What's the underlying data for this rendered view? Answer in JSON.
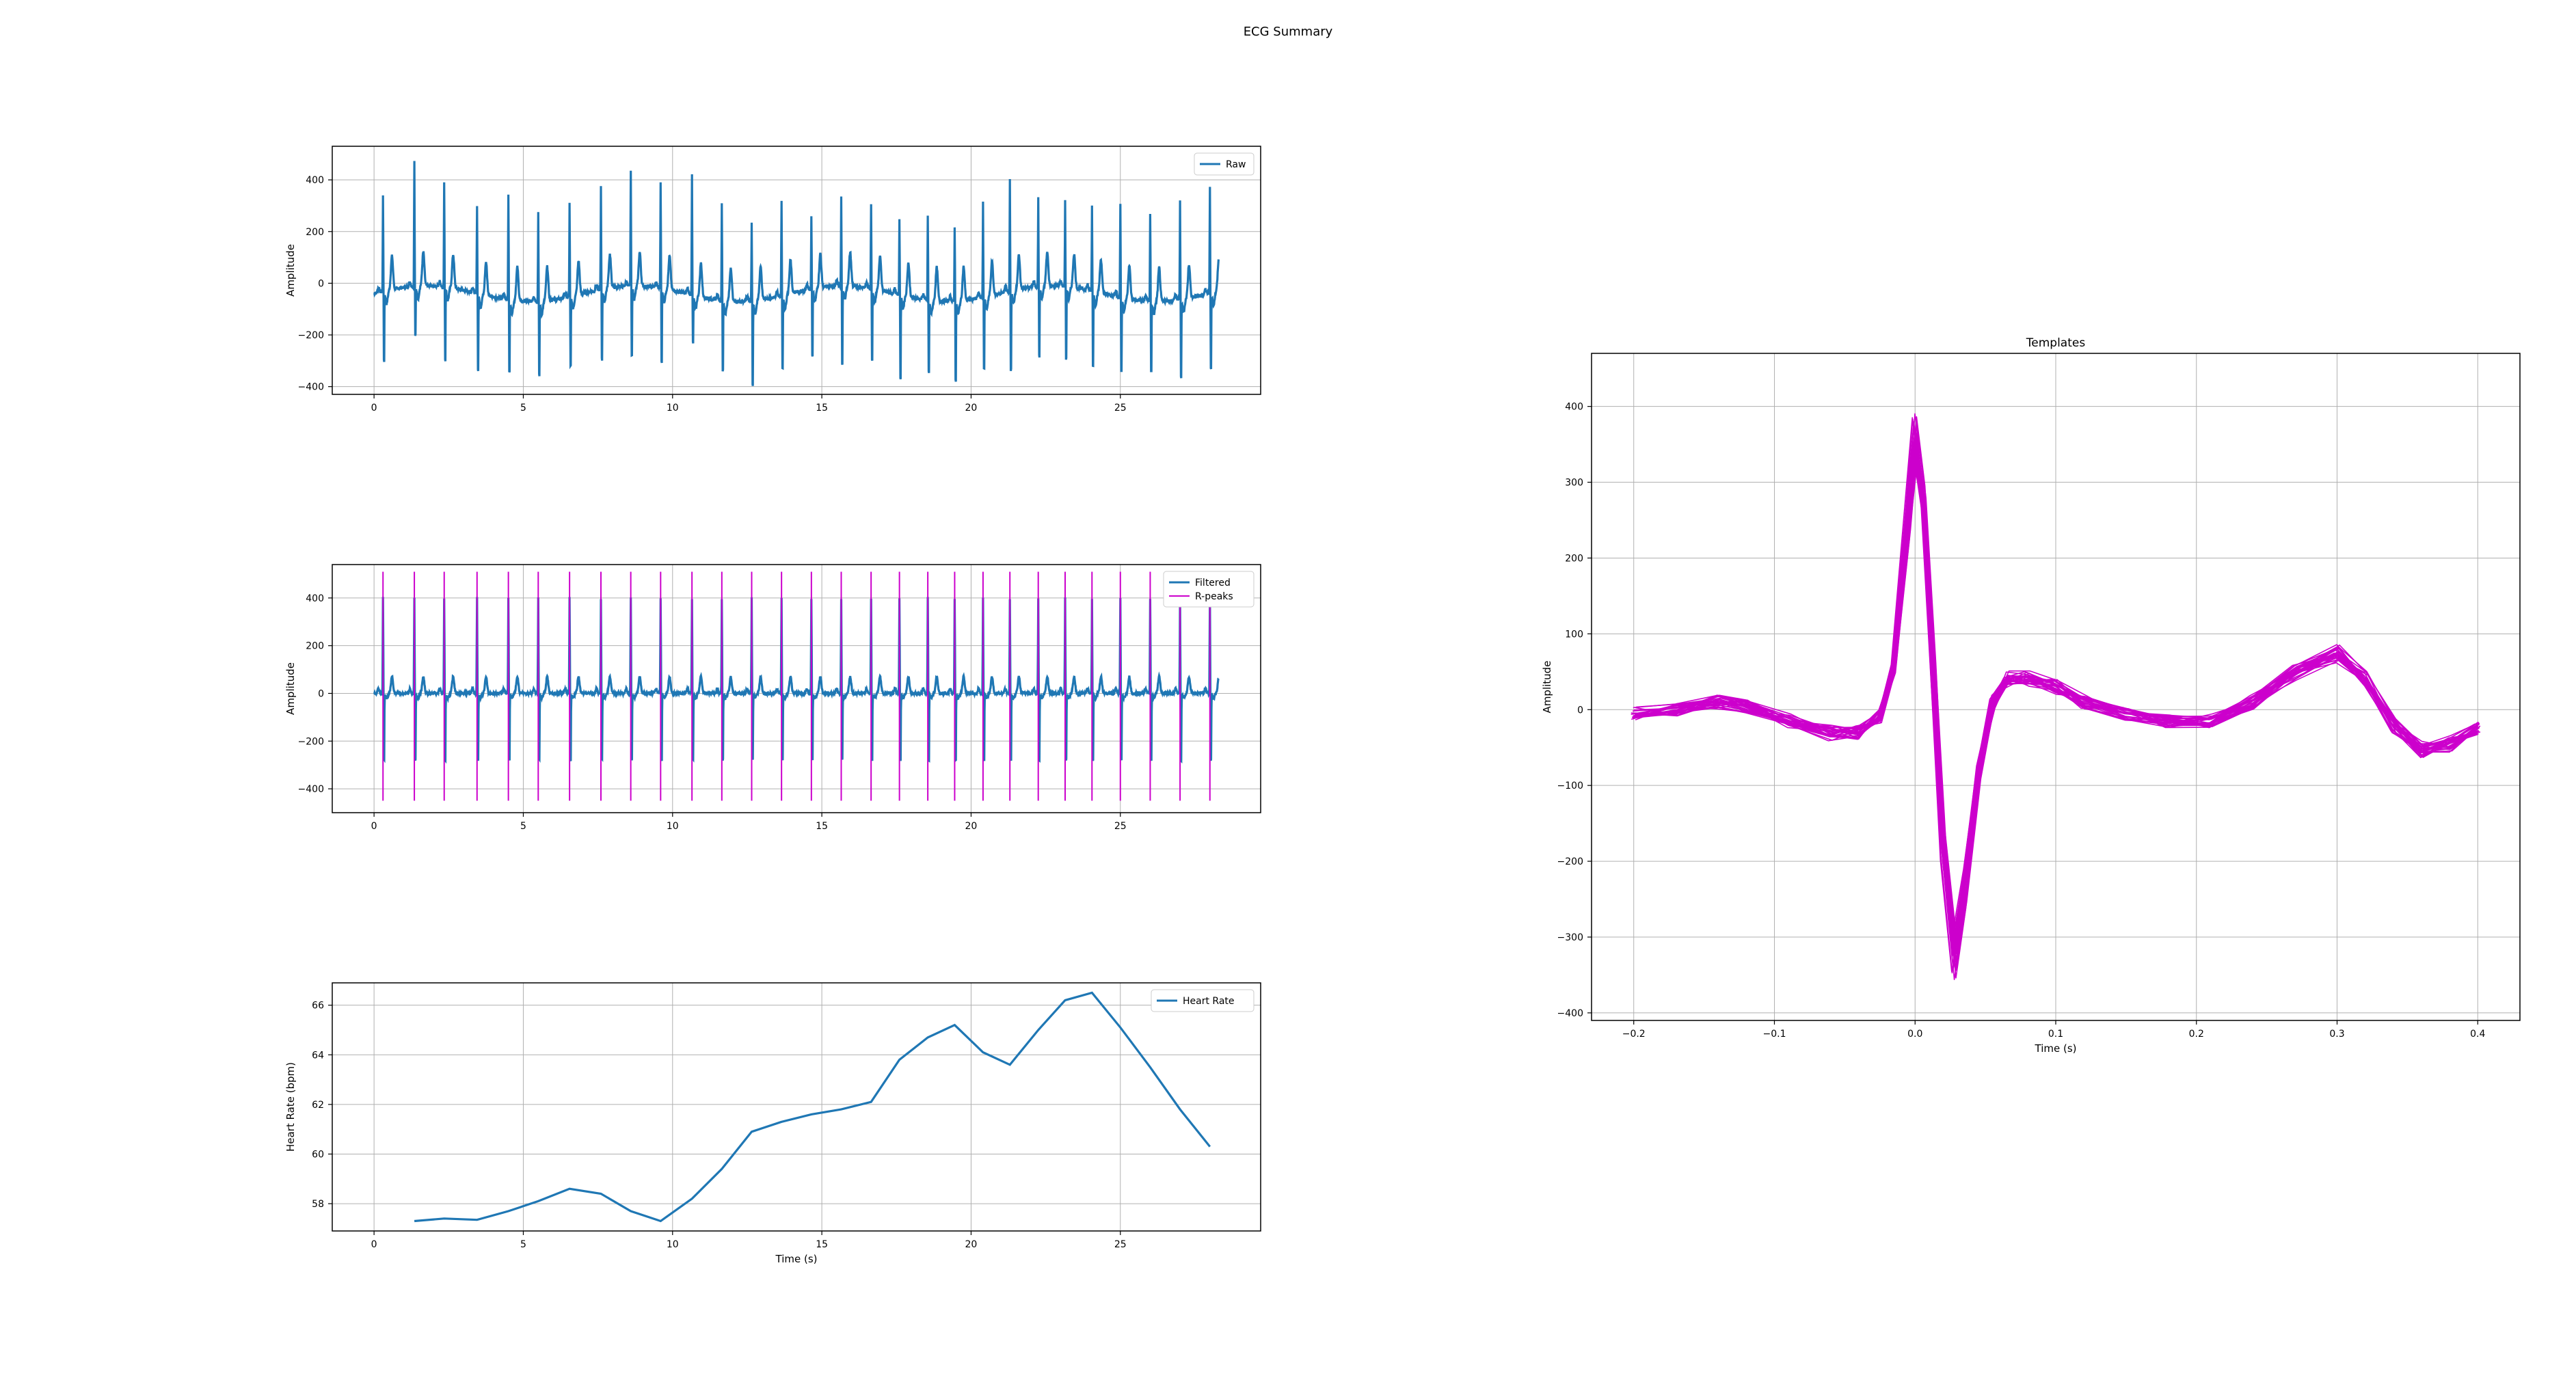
{
  "figure_title": "ECG Summary",
  "colors": {
    "signal": "#1f77b4",
    "rpeak": "#cc00cc",
    "grid": "#b0b0b0",
    "axis": "#000000"
  },
  "chart_data": [
    {
      "id": "raw",
      "type": "line",
      "title": "",
      "xlabel": "",
      "ylabel": "Amplitude",
      "xlim": [
        -1.4,
        29.7
      ],
      "ylim": [
        -430,
        530
      ],
      "xticks": [
        0,
        5,
        10,
        15,
        20,
        25
      ],
      "yticks": [
        -400,
        -200,
        0,
        200,
        400
      ],
      "ytick_labels": [
        "−400",
        "−200",
        "0",
        "200",
        "400"
      ],
      "legend": {
        "placement": "top-right",
        "entries": [
          "Raw"
        ]
      },
      "grid": true,
      "series": [
        {
          "name": "Raw",
          "color": "#1f77b4"
        }
      ],
      "r_peak_times": [
        0.3,
        1.35,
        2.35,
        3.45,
        4.5,
        5.5,
        6.55,
        7.6,
        8.6,
        9.6,
        10.65,
        11.65,
        12.65,
        13.65,
        14.65,
        15.65,
        16.65,
        17.6,
        18.55,
        19.45,
        20.4,
        21.3,
        22.25,
        23.15,
        24.05,
        25.0,
        26.0,
        27.0,
        28.0
      ],
      "r_peak_amplitudes": [
        370,
        490,
        410,
        340,
        410,
        350,
        360,
        400,
        440,
        410,
        470,
        380,
        300,
        370,
        280,
        340,
        330,
        290,
        330,
        290,
        370,
        430,
        350,
        330,
        330,
        360,
        340,
        380,
        410
      ],
      "s_trough_amplitudes": [
        -320,
        -220,
        -330,
        -350,
        -330,
        -340,
        -320,
        -320,
        -320,
        -340,
        -220,
        -320,
        -390,
        -330,
        -300,
        -360,
        -320,
        -380,
        -330,
        -360,
        -320,
        -360,
        -320,
        -330,
        -340,
        -330,
        -320,
        -360,
        -340
      ],
      "x_end": 28.3
    },
    {
      "id": "filtered",
      "type": "line",
      "title": "",
      "xlabel": "",
      "ylabel": "Amplitude",
      "xlim": [
        -1.4,
        29.7
      ],
      "ylim": [
        -500,
        540
      ],
      "xticks": [
        0,
        5,
        10,
        15,
        20,
        25
      ],
      "yticks": [
        -400,
        -200,
        0,
        200,
        400
      ],
      "ytick_labels": [
        "−400",
        "−200",
        "0",
        "200",
        "400"
      ],
      "legend": {
        "placement": "top-right",
        "entries": [
          "Filtered",
          "R-peaks"
        ]
      },
      "grid": true,
      "series": [
        {
          "name": "Filtered",
          "color": "#1f77b4"
        },
        {
          "name": "R-peaks",
          "color": "#cc00cc"
        }
      ],
      "r_peak_times": [
        0.3,
        1.35,
        2.35,
        3.45,
        4.5,
        5.5,
        6.55,
        7.6,
        8.6,
        9.6,
        10.65,
        11.65,
        12.65,
        13.65,
        14.65,
        15.65,
        16.65,
        17.6,
        18.55,
        19.45,
        20.4,
        21.3,
        22.25,
        23.15,
        24.05,
        25.0,
        26.0,
        27.0,
        28.0
      ],
      "rpeak_line_range": [
        -450,
        510
      ],
      "r_peak_amplitude": 400,
      "s_trough_amplitude": -330,
      "x_end": 28.3
    },
    {
      "id": "heart_rate",
      "type": "line",
      "title": "",
      "xlabel": "Time (s)",
      "ylabel": "Heart Rate (bpm)",
      "xlim": [
        -1.4,
        29.7
      ],
      "ylim": [
        56.9,
        66.9
      ],
      "xticks": [
        0,
        5,
        10,
        15,
        20,
        25
      ],
      "yticks": [
        58,
        60,
        62,
        64,
        66
      ],
      "legend": {
        "placement": "top-right",
        "entries": [
          "Heart Rate"
        ]
      },
      "grid": true,
      "series": [
        {
          "name": "Heart Rate",
          "color": "#1f77b4",
          "x": [
            1.35,
            2.35,
            3.45,
            4.5,
            5.5,
            6.55,
            7.6,
            8.6,
            9.6,
            10.65,
            11.65,
            12.65,
            13.65,
            14.65,
            15.65,
            16.65,
            17.6,
            18.55,
            19.45,
            20.4,
            21.3,
            22.25,
            23.15,
            24.05,
            25.0,
            26.0,
            27.0,
            28.0
          ],
          "y": [
            57.3,
            57.4,
            57.35,
            57.7,
            58.1,
            58.6,
            58.4,
            57.7,
            57.3,
            58.2,
            59.4,
            60.9,
            61.3,
            61.6,
            61.8,
            62.1,
            63.8,
            64.7,
            65.2,
            64.1,
            63.6,
            65.0,
            66.2,
            66.5,
            65.1,
            63.5,
            61.8,
            60.3
          ]
        }
      ]
    },
    {
      "id": "templates",
      "type": "line",
      "title": "Templates",
      "xlabel": "Time (s)",
      "ylabel": "Amplitude",
      "xlim": [
        -0.23,
        0.43
      ],
      "ylim": [
        -410,
        470
      ],
      "xticks": [
        -0.2,
        -0.1,
        0.0,
        0.1,
        0.2,
        0.3,
        0.4
      ],
      "xtick_labels": [
        "−0.2",
        "−0.1",
        "0.0",
        "0.1",
        "0.2",
        "0.3",
        "0.4"
      ],
      "yticks": [
        -400,
        -300,
        -200,
        -100,
        0,
        100,
        200,
        300,
        400
      ],
      "ytick_labels": [
        "−400",
        "−300",
        "−200",
        "−100",
        "0",
        "100",
        "200",
        "300",
        "400"
      ],
      "grid": true,
      "series": [
        {
          "name": "",
          "color": "#cc00cc",
          "count": 29,
          "x": [
            -0.2,
            -0.17,
            -0.14,
            -0.12,
            -0.09,
            -0.06,
            -0.04,
            -0.025,
            -0.015,
            -0.005,
            0.0,
            0.006,
            0.013,
            0.02,
            0.028,
            0.035,
            0.045,
            0.055,
            0.065,
            0.08,
            0.1,
            0.12,
            0.15,
            0.18,
            0.21,
            0.24,
            0.27,
            0.3,
            0.32,
            0.34,
            0.36,
            0.38,
            0.4
          ],
          "y": [
            -5,
            0,
            10,
            5,
            -15,
            -30,
            -30,
            -10,
            60,
            250,
            355,
            270,
            50,
            -180,
            -320,
            -240,
            -80,
            10,
            40,
            40,
            30,
            10,
            -5,
            -15,
            -15,
            10,
            50,
            75,
            40,
            -20,
            -55,
            -45,
            -25
          ]
        }
      ]
    }
  ]
}
